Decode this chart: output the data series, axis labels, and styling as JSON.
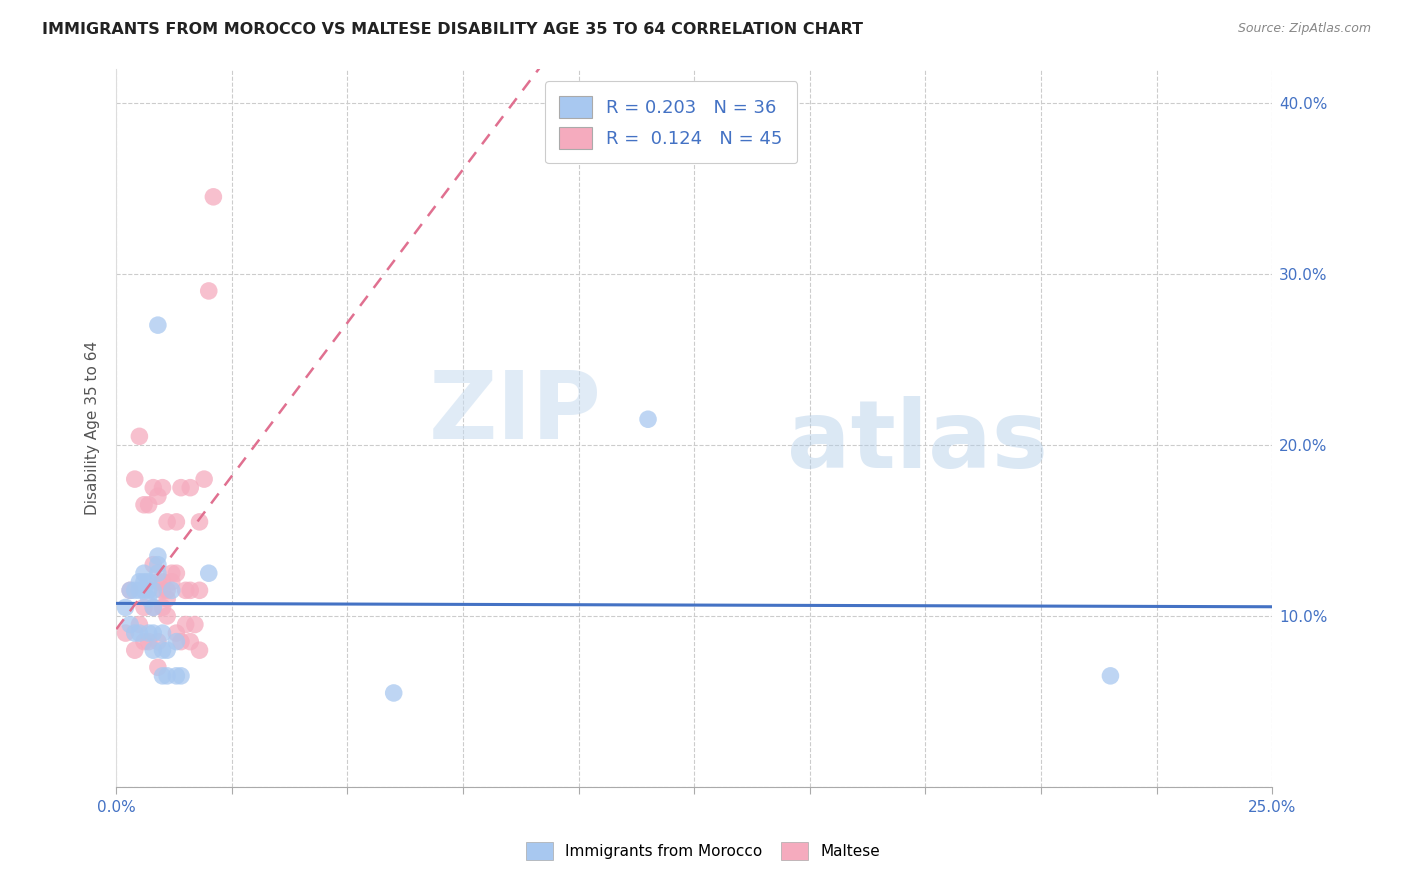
{
  "title": "IMMIGRANTS FROM MOROCCO VS MALTESE DISABILITY AGE 35 TO 64 CORRELATION CHART",
  "source": "Source: ZipAtlas.com",
  "ylabel": "Disability Age 35 to 64",
  "xlim": [
    0.0,
    0.25
  ],
  "ylim": [
    0.0,
    0.42
  ],
  "x_ticks": [
    0.0,
    0.025,
    0.05,
    0.075,
    0.1,
    0.125,
    0.15,
    0.175,
    0.2,
    0.225,
    0.25
  ],
  "y_ticks": [
    0.0,
    0.1,
    0.2,
    0.3,
    0.4
  ],
  "y_tick_labels": [
    "",
    "10.0%",
    "20.0%",
    "30.0%",
    "40.0%"
  ],
  "legend1_R": "0.203",
  "legend1_N": "36",
  "legend2_R": "0.124",
  "legend2_N": "45",
  "blue_color": "#A8C8F0",
  "pink_color": "#F5ABBE",
  "line_blue": "#4472C4",
  "line_pink": "#E07090",
  "watermark_zip": "ZIP",
  "watermark_atlas": "atlas",
  "morocco_x": [
    0.002,
    0.003,
    0.003,
    0.004,
    0.004,
    0.005,
    0.005,
    0.005,
    0.006,
    0.006,
    0.006,
    0.007,
    0.007,
    0.007,
    0.007,
    0.008,
    0.008,
    0.008,
    0.008,
    0.009,
    0.009,
    0.009,
    0.009,
    0.01,
    0.01,
    0.01,
    0.011,
    0.011,
    0.012,
    0.013,
    0.013,
    0.014,
    0.02,
    0.115,
    0.215,
    0.06
  ],
  "morocco_y": [
    0.105,
    0.115,
    0.095,
    0.115,
    0.09,
    0.115,
    0.12,
    0.09,
    0.115,
    0.12,
    0.125,
    0.11,
    0.115,
    0.12,
    0.09,
    0.115,
    0.105,
    0.09,
    0.08,
    0.13,
    0.135,
    0.27,
    0.125,
    0.09,
    0.08,
    0.065,
    0.065,
    0.08,
    0.115,
    0.065,
    0.085,
    0.065,
    0.125,
    0.215,
    0.065,
    0.055
  ],
  "maltese_x": [
    0.002,
    0.003,
    0.004,
    0.004,
    0.005,
    0.005,
    0.006,
    0.006,
    0.006,
    0.007,
    0.007,
    0.008,
    0.008,
    0.008,
    0.009,
    0.009,
    0.009,
    0.009,
    0.01,
    0.01,
    0.01,
    0.01,
    0.011,
    0.011,
    0.011,
    0.011,
    0.012,
    0.012,
    0.013,
    0.013,
    0.013,
    0.014,
    0.014,
    0.015,
    0.015,
    0.016,
    0.016,
    0.016,
    0.017,
    0.018,
    0.018,
    0.018,
    0.019,
    0.02,
    0.021
  ],
  "maltese_y": [
    0.09,
    0.115,
    0.08,
    0.18,
    0.095,
    0.205,
    0.085,
    0.165,
    0.105,
    0.085,
    0.165,
    0.105,
    0.175,
    0.13,
    0.07,
    0.12,
    0.17,
    0.085,
    0.105,
    0.115,
    0.12,
    0.175,
    0.1,
    0.11,
    0.115,
    0.155,
    0.12,
    0.125,
    0.09,
    0.125,
    0.155,
    0.085,
    0.175,
    0.115,
    0.095,
    0.085,
    0.175,
    0.115,
    0.095,
    0.115,
    0.155,
    0.08,
    0.18,
    0.29,
    0.345
  ]
}
